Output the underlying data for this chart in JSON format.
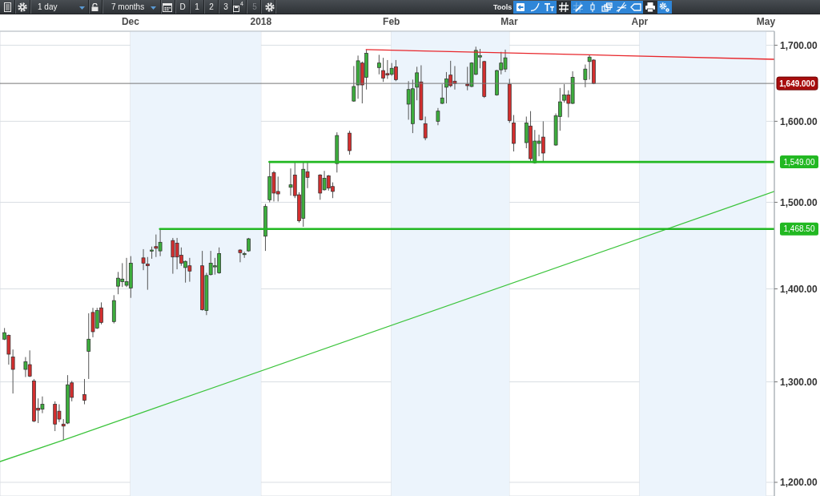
{
  "chart_data": {
    "type": "candlestick",
    "annotations": [
      "1 day",
      "7 months",
      "D",
      "1",
      "2",
      "3",
      "4",
      "5",
      "Tools"
    ],
    "x": [
      "2017-11-01",
      "2017-11-02",
      "2017-11-03",
      "2017-11-06",
      "2017-11-07",
      "2017-11-08",
      "2017-11-09",
      "2017-11-10",
      "2017-11-13",
      "2017-11-14",
      "2017-11-15",
      "2017-11-16",
      "2017-11-17",
      "2017-11-20",
      "2017-11-21",
      "2017-11-22",
      "2017-11-23",
      "2017-11-24",
      "2017-11-27",
      "2017-11-28",
      "2017-11-29",
      "2017-11-30",
      "2017-12-01",
      "2017-12-04",
      "2017-12-05",
      "2017-12-06",
      "2017-12-07",
      "2017-12-08",
      "2017-12-11",
      "2017-12-12",
      "2017-12-13",
      "2017-12-14",
      "2017-12-15",
      "2017-12-18",
      "2017-12-19",
      "2017-12-20",
      "2017-12-21",
      "2017-12-22",
      "2017-12-27",
      "2017-12-28",
      "2017-12-29",
      "2018-01-02",
      "2018-01-03",
      "2018-01-04",
      "2018-01-05",
      "2018-01-08",
      "2018-01-09",
      "2018-01-10",
      "2018-01-11",
      "2018-01-12",
      "2018-01-15",
      "2018-01-16",
      "2018-01-17",
      "2018-01-18",
      "2018-01-19",
      "2018-01-22",
      "2018-01-23",
      "2018-01-24",
      "2018-01-25",
      "2018-01-26",
      "2018-01-29",
      "2018-01-30",
      "2018-01-31",
      "2018-02-01",
      "2018-02-02",
      "2018-02-05",
      "2018-02-06",
      "2018-02-07",
      "2018-02-08",
      "2018-02-09",
      "2018-02-12",
      "2018-02-13",
      "2018-02-14",
      "2018-02-15",
      "2018-02-16",
      "2018-02-19",
      "2018-02-20",
      "2018-02-21",
      "2018-02-22",
      "2018-02-23",
      "2018-02-26",
      "2018-02-27",
      "2018-02-28",
      "2018-03-01",
      "2018-03-02",
      "2018-03-05",
      "2018-03-06",
      "2018-03-07",
      "2018-03-08",
      "2018-03-09",
      "2018-03-12",
      "2018-03-13",
      "2018-03-14",
      "2018-03-15",
      "2018-03-16",
      "2018-03-19",
      "2018-03-20",
      "2018-03-21"
    ],
    "ohlc": [
      [
        1345,
        1357,
        1344,
        1352
      ],
      [
        1349,
        1350,
        1318,
        1329
      ],
      [
        1326,
        1334,
        1288,
        1313
      ],
      [
        1313,
        1326,
        1305,
        1321
      ],
      [
        1318,
        1333,
        1305,
        1306
      ],
      [
        1301,
        1303,
        1259,
        1260
      ],
      [
        1273,
        1283,
        1258,
        1271
      ],
      [
        1272,
        1285,
        1268,
        1277
      ],
      [
        1277,
        1280,
        1250,
        1257
      ],
      [
        1270,
        1277,
        1259,
        1262
      ],
      [
        1257,
        1262,
        1241,
        1255
      ],
      [
        1258,
        1307,
        1257,
        1297
      ],
      [
        1299,
        1301,
        1280,
        1284
      ],
      [
        1287,
        1303,
        1277,
        1281
      ],
      [
        1332,
        1373,
        1303,
        1345
      ],
      [
        1374,
        1379,
        1347,
        1353
      ],
      [
        1357,
        1379,
        1356,
        1376
      ],
      [
        1379,
        1385,
        1361,
        1363
      ],
      [
        1364,
        1393,
        1362,
        1387
      ],
      [
        1403,
        1419,
        1394,
        1412
      ],
      [
        1408,
        1429,
        1402,
        1411
      ],
      [
        1404,
        1435,
        1402,
        1408
      ],
      [
        1401,
        1437,
        1390,
        1429
      ],
      [
        1435,
        1445,
        1421,
        1429
      ],
      [
        1428,
        1436,
        1399,
        1426
      ],
      [
        1443,
        1448,
        1434,
        1444
      ],
      [
        1448,
        1462,
        1436,
        1446
      ],
      [
        1443,
        1468,
        1437,
        1453
      ],
      [
        1455,
        1458,
        1417,
        1436
      ],
      [
        1452,
        1458,
        1422,
        1436
      ],
      [
        1438,
        1447,
        1426,
        1429
      ],
      [
        1424,
        1432,
        1407,
        1431
      ],
      [
        1426,
        1435,
        1408,
        1420
      ],
      [
        1426,
        1443,
        1376,
        1377
      ],
      [
        1376,
        1418,
        1371,
        1415
      ],
      [
        1416,
        1443,
        1415,
        1429
      ],
      [
        1425,
        1435,
        1416,
        1426
      ],
      [
        1418,
        1447,
        1417,
        1440
      ],
      [
        1444,
        1445,
        1430,
        1441
      ],
      [
        1439,
        1442,
        1435,
        1440
      ],
      [
        1443,
        1458,
        1442,
        1457
      ],
      [
        1460,
        1498,
        1443,
        1495
      ],
      [
        1503,
        1549,
        1500,
        1531
      ],
      [
        1536,
        1538,
        1501,
        1511
      ],
      [
        1513,
        1531,
        1501,
        1510
      ],
      [
        1518,
        1541,
        1508,
        1521
      ],
      [
        1533,
        1548,
        1505,
        1508
      ],
      [
        1509,
        1512,
        1476,
        1478
      ],
      [
        1481,
        1550,
        1471,
        1540
      ],
      [
        1537,
        1549,
        1517,
        1530
      ],
      [
        1533,
        1534,
        1503,
        1511
      ],
      [
        1515,
        1538,
        1514,
        1529
      ],
      [
        1532,
        1533,
        1514,
        1517
      ],
      [
        1519,
        1524,
        1505,
        1513
      ],
      [
        1547,
        1586,
        1536,
        1582
      ],
      [
        1585,
        1588,
        1558,
        1563
      ],
      [
        1626,
        1672,
        1625,
        1645
      ],
      [
        1647,
        1686,
        1629,
        1679
      ],
      [
        1676,
        1678,
        1623,
        1647
      ],
      [
        1657,
        1694,
        1641,
        1689
      ],
      [
        1670,
        1687,
        1661,
        1676
      ],
      [
        1666,
        1683,
        1651,
        1656
      ],
      [
        1662,
        1680,
        1655,
        1660
      ],
      [
        1661,
        1676,
        1659,
        1669
      ],
      [
        1671,
        1680,
        1652,
        1654
      ],
      [
        1622,
        1652,
        1602,
        1641
      ],
      [
        1597,
        1654,
        1585,
        1642
      ],
      [
        1644,
        1671,
        1627,
        1663
      ],
      [
        1651,
        1673,
        1601,
        1602
      ],
      [
        1597,
        1606,
        1576,
        1579
      ],
      [
        1600,
        1617,
        1595,
        1613
      ],
      [
        1623,
        1648,
        1622,
        1630
      ],
      [
        1644,
        1664,
        1623,
        1655
      ],
      [
        1660,
        1679,
        1644,
        1646
      ],
      [
        1652,
        1672,
        1641,
        1649
      ],
      [
        1648,
        1671,
        1640,
        1646
      ],
      [
        1645,
        1677,
        1644,
        1676
      ],
      [
        1661,
        1698,
        1660,
        1693
      ],
      [
        1684,
        1695,
        1669,
        1686
      ],
      [
        1678,
        1679,
        1630,
        1632
      ],
      [
        1634,
        1667,
        1633,
        1666
      ],
      [
        1667,
        1691,
        1661,
        1676
      ],
      [
        1668,
        1694,
        1664,
        1683
      ],
      [
        1648,
        1655,
        1598,
        1601
      ],
      [
        1598,
        1608,
        1562,
        1572
      ],
      [
        1573,
        1606,
        1566,
        1598
      ],
      [
        1594,
        1613,
        1550,
        1553
      ],
      [
        1548,
        1589,
        1547,
        1575
      ],
      [
        1572,
        1583,
        1556,
        1575
      ],
      [
        1580,
        1600,
        1549,
        1560
      ],
      [
        1570,
        1610,
        1569,
        1607
      ],
      [
        1606,
        1643,
        1588,
        1625
      ],
      [
        1627,
        1648,
        1624,
        1634
      ],
      [
        1634,
        1640,
        1605,
        1623
      ],
      [
        1623,
        1665,
        1622,
        1657
      ],
      [
        1654,
        1674,
        1644,
        1668
      ],
      [
        1678,
        1687,
        1654,
        1684
      ],
      [
        1680,
        1681,
        1648,
        1649
      ]
    ],
    "colors": [
      "#3dae3d",
      "#d32f2f",
      "#d32f2f",
      "#3dae3d",
      "#d32f2f",
      "#d32f2f",
      "#d32f2f",
      "#3dae3d",
      "#d32f2f",
      "#d32f2f",
      "#d32f2f",
      "#3dae3d",
      "#d32f2f",
      "#d32f2f",
      "#3dae3d",
      "#d32f2f",
      "#3dae3d",
      "#d32f2f",
      "#3dae3d",
      "#3dae3d",
      "#3dae3d",
      "#3dae3d",
      "#3dae3d",
      "#d32f2f",
      "#d32f2f",
      "#3dae3d",
      "#d32f2f",
      "#3dae3d",
      "#d32f2f",
      "#d32f2f",
      "#d32f2f",
      "#3dae3d",
      "#d32f2f",
      "#d32f2f",
      "#3dae3d",
      "#3dae3d",
      "#3dae3d",
      "#3dae3d",
      "#d32f2f",
      "#3dae3d",
      "#3dae3d",
      "#3dae3d",
      "#3dae3d",
      "#d32f2f",
      "#d32f2f",
      "#3dae3d",
      "#d32f2f",
      "#d32f2f",
      "#3dae3d",
      "#d32f2f",
      "#d32f2f",
      "#3dae3d",
      "#d32f2f",
      "#d32f2f",
      "#3dae3d",
      "#d32f2f",
      "#3dae3d",
      "#3dae3d",
      "#d32f2f",
      "#3dae3d",
      "#3dae3d",
      "#d32f2f",
      "#d32f2f",
      "#3dae3d",
      "#d32f2f",
      "#3dae3d",
      "#3dae3d",
      "#3dae3d",
      "#d32f2f",
      "#d32f2f",
      "#3dae3d",
      "#3dae3d",
      "#3dae3d",
      "#d32f2f",
      "#d32f2f",
      "#d32f2f",
      "#3dae3d",
      "#3dae3d",
      "#3dae3d",
      "#d32f2f",
      "#3dae3d",
      "#3dae3d",
      "#3dae3d",
      "#d32f2f",
      "#d32f2f",
      "#3dae3d",
      "#d32f2f",
      "#3dae3d",
      "#3dae3d",
      "#d32f2f",
      "#3dae3d",
      "#3dae3d",
      "#3dae3d",
      "#d32f2f",
      "#3dae3d",
      "#3dae3d",
      "#3dae3d",
      "#d32f2f"
    ],
    "series": [
      {
        "type": "line",
        "color": "#e8262b",
        "x": [
          "2018-01-26",
          "2018-03-20",
          "2018-05-03"
        ],
        "values": [
          1694,
          1687,
          1681
        ]
      },
      {
        "type": "line",
        "color": "#3cc43c",
        "x": [
          "2017-10-31",
          "2017-11-15",
          "2018-05-03"
        ],
        "values": [
          1220,
          1241,
          1513
        ]
      },
      {
        "type": "line",
        "color": "#22b822",
        "x": [
          "2017-12-08",
          "2018-05-03"
        ],
        "values": [
          1468.5,
          1468.5
        ],
        "value_labels": [
          null,
          "1,468.50"
        ]
      },
      {
        "type": "line",
        "color": "#22b822",
        "x": [
          "2018-01-03",
          "2018-05-03"
        ],
        "values": [
          1549,
          1549
        ],
        "value_labels": [
          null,
          "1,549.00"
        ]
      }
    ],
    "ref_lines": [
      {
        "axis": "y",
        "value": 1649,
        "label": "1,649.000",
        "color": "#777777"
      }
    ],
    "bands": [
      {
        "axis": "x",
        "from": "2017-12-01",
        "to": "2018-01-01",
        "color": "#ecf4fc"
      },
      {
        "axis": "x",
        "from": "2018-02-01",
        "to": "2018-03-01",
        "color": "#ecf4fc"
      },
      {
        "axis": "x",
        "from": "2018-04-01",
        "to": "2018-05-01",
        "color": "#ecf4fc"
      }
    ],
    "xlim": [
      "2017-10-31",
      "2018-05-03"
    ],
    "xticks": [
      {
        "value": "2017-12-01",
        "label": "Dec"
      },
      {
        "value": "2018-01-01",
        "label": "2018"
      },
      {
        "value": "2018-02-01",
        "label": "Feb"
      },
      {
        "value": "2018-03-01",
        "label": "Mar"
      },
      {
        "value": "2018-04-01",
        "label": "Apr"
      },
      {
        "value": "2018-05-01",
        "label": "May"
      }
    ],
    "ylim": [
      1187,
      1719
    ],
    "yticks": [
      {
        "value": 1200,
        "label": "1,200.00"
      },
      {
        "value": 1300,
        "label": "1,300.00"
      },
      {
        "value": 1400,
        "label": "1,400.00"
      },
      {
        "value": 1500,
        "label": "1,500.00"
      },
      {
        "value": 1600,
        "label": "1,600.00"
      },
      {
        "value": 1700,
        "label": "1,700.00"
      }
    ],
    "log": true,
    "grid": true
  }
}
